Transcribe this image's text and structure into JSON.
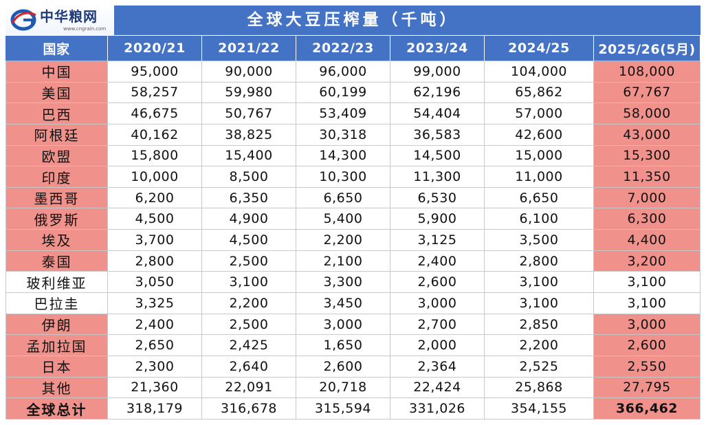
{
  "logo": {
    "name": "中华粮网",
    "url": "www.cngrain.com"
  },
  "colors": {
    "bar": "#4472C4",
    "header_text": "#FFFFFF",
    "highlight": "#F0928B",
    "grid": "#C8C8C8"
  },
  "chart_data": {
    "type": "table",
    "title": "全球大豆压榨量（千吨）",
    "columns": [
      "国家",
      "2020/21",
      "2021/22",
      "2022/23",
      "2023/24",
      "2024/25",
      "2025/26(5月)"
    ],
    "rows": [
      {
        "country": "中国",
        "values": [
          "95,000",
          "90,000",
          "96,000",
          "99,000",
          "104,000",
          "108,000"
        ],
        "highlight": true
      },
      {
        "country": "美国",
        "values": [
          "58,257",
          "59,980",
          "60,199",
          "62,196",
          "65,862",
          "67,767"
        ],
        "highlight": true
      },
      {
        "country": "巴西",
        "values": [
          "46,675",
          "50,767",
          "53,409",
          "54,404",
          "57,000",
          "58,000"
        ],
        "highlight": true
      },
      {
        "country": "阿根廷",
        "values": [
          "40,162",
          "38,825",
          "30,318",
          "36,583",
          "42,600",
          "43,000"
        ],
        "highlight": true
      },
      {
        "country": "欧盟",
        "values": [
          "15,800",
          "15,400",
          "14,300",
          "14,500",
          "15,000",
          "15,300"
        ],
        "highlight": true
      },
      {
        "country": "印度",
        "values": [
          "10,000",
          "8,500",
          "10,300",
          "11,300",
          "11,000",
          "11,350"
        ],
        "highlight": true
      },
      {
        "country": "墨西哥",
        "values": [
          "6,200",
          "6,350",
          "6,650",
          "6,530",
          "6,650",
          "7,000"
        ],
        "highlight": true
      },
      {
        "country": "俄罗斯",
        "values": [
          "4,500",
          "4,900",
          "5,400",
          "5,900",
          "6,100",
          "6,300"
        ],
        "highlight": true
      },
      {
        "country": "埃及",
        "values": [
          "3,700",
          "4,500",
          "2,200",
          "3,125",
          "3,500",
          "4,400"
        ],
        "highlight": true
      },
      {
        "country": "泰国",
        "values": [
          "2,800",
          "2,500",
          "2,100",
          "2,400",
          "2,800",
          "3,200"
        ],
        "highlight": true
      },
      {
        "country": "玻利维亚",
        "values": [
          "3,050",
          "3,100",
          "3,300",
          "2,600",
          "3,100",
          "3,100"
        ],
        "highlight": false
      },
      {
        "country": "巴拉圭",
        "values": [
          "3,325",
          "2,200",
          "3,450",
          "3,000",
          "3,100",
          "3,100"
        ],
        "highlight": false
      },
      {
        "country": "伊朗",
        "values": [
          "2,400",
          "2,500",
          "3,000",
          "2,700",
          "2,850",
          "3,000"
        ],
        "highlight": true
      },
      {
        "country": "孟加拉国",
        "values": [
          "2,650",
          "2,425",
          "1,650",
          "2,000",
          "2,200",
          "2,600"
        ],
        "highlight": true
      },
      {
        "country": "日本",
        "values": [
          "2,300",
          "2,640",
          "2,600",
          "2,364",
          "2,525",
          "2,550"
        ],
        "highlight": true
      },
      {
        "country": "其他",
        "values": [
          "21,360",
          "22,091",
          "20,718",
          "22,424",
          "25,868",
          "27,795"
        ],
        "highlight": true
      },
      {
        "country": "全球总计",
        "values": [
          "318,179",
          "316,678",
          "315,594",
          "331,026",
          "354,155",
          "366,462"
        ],
        "highlight": true,
        "total": true
      }
    ]
  }
}
